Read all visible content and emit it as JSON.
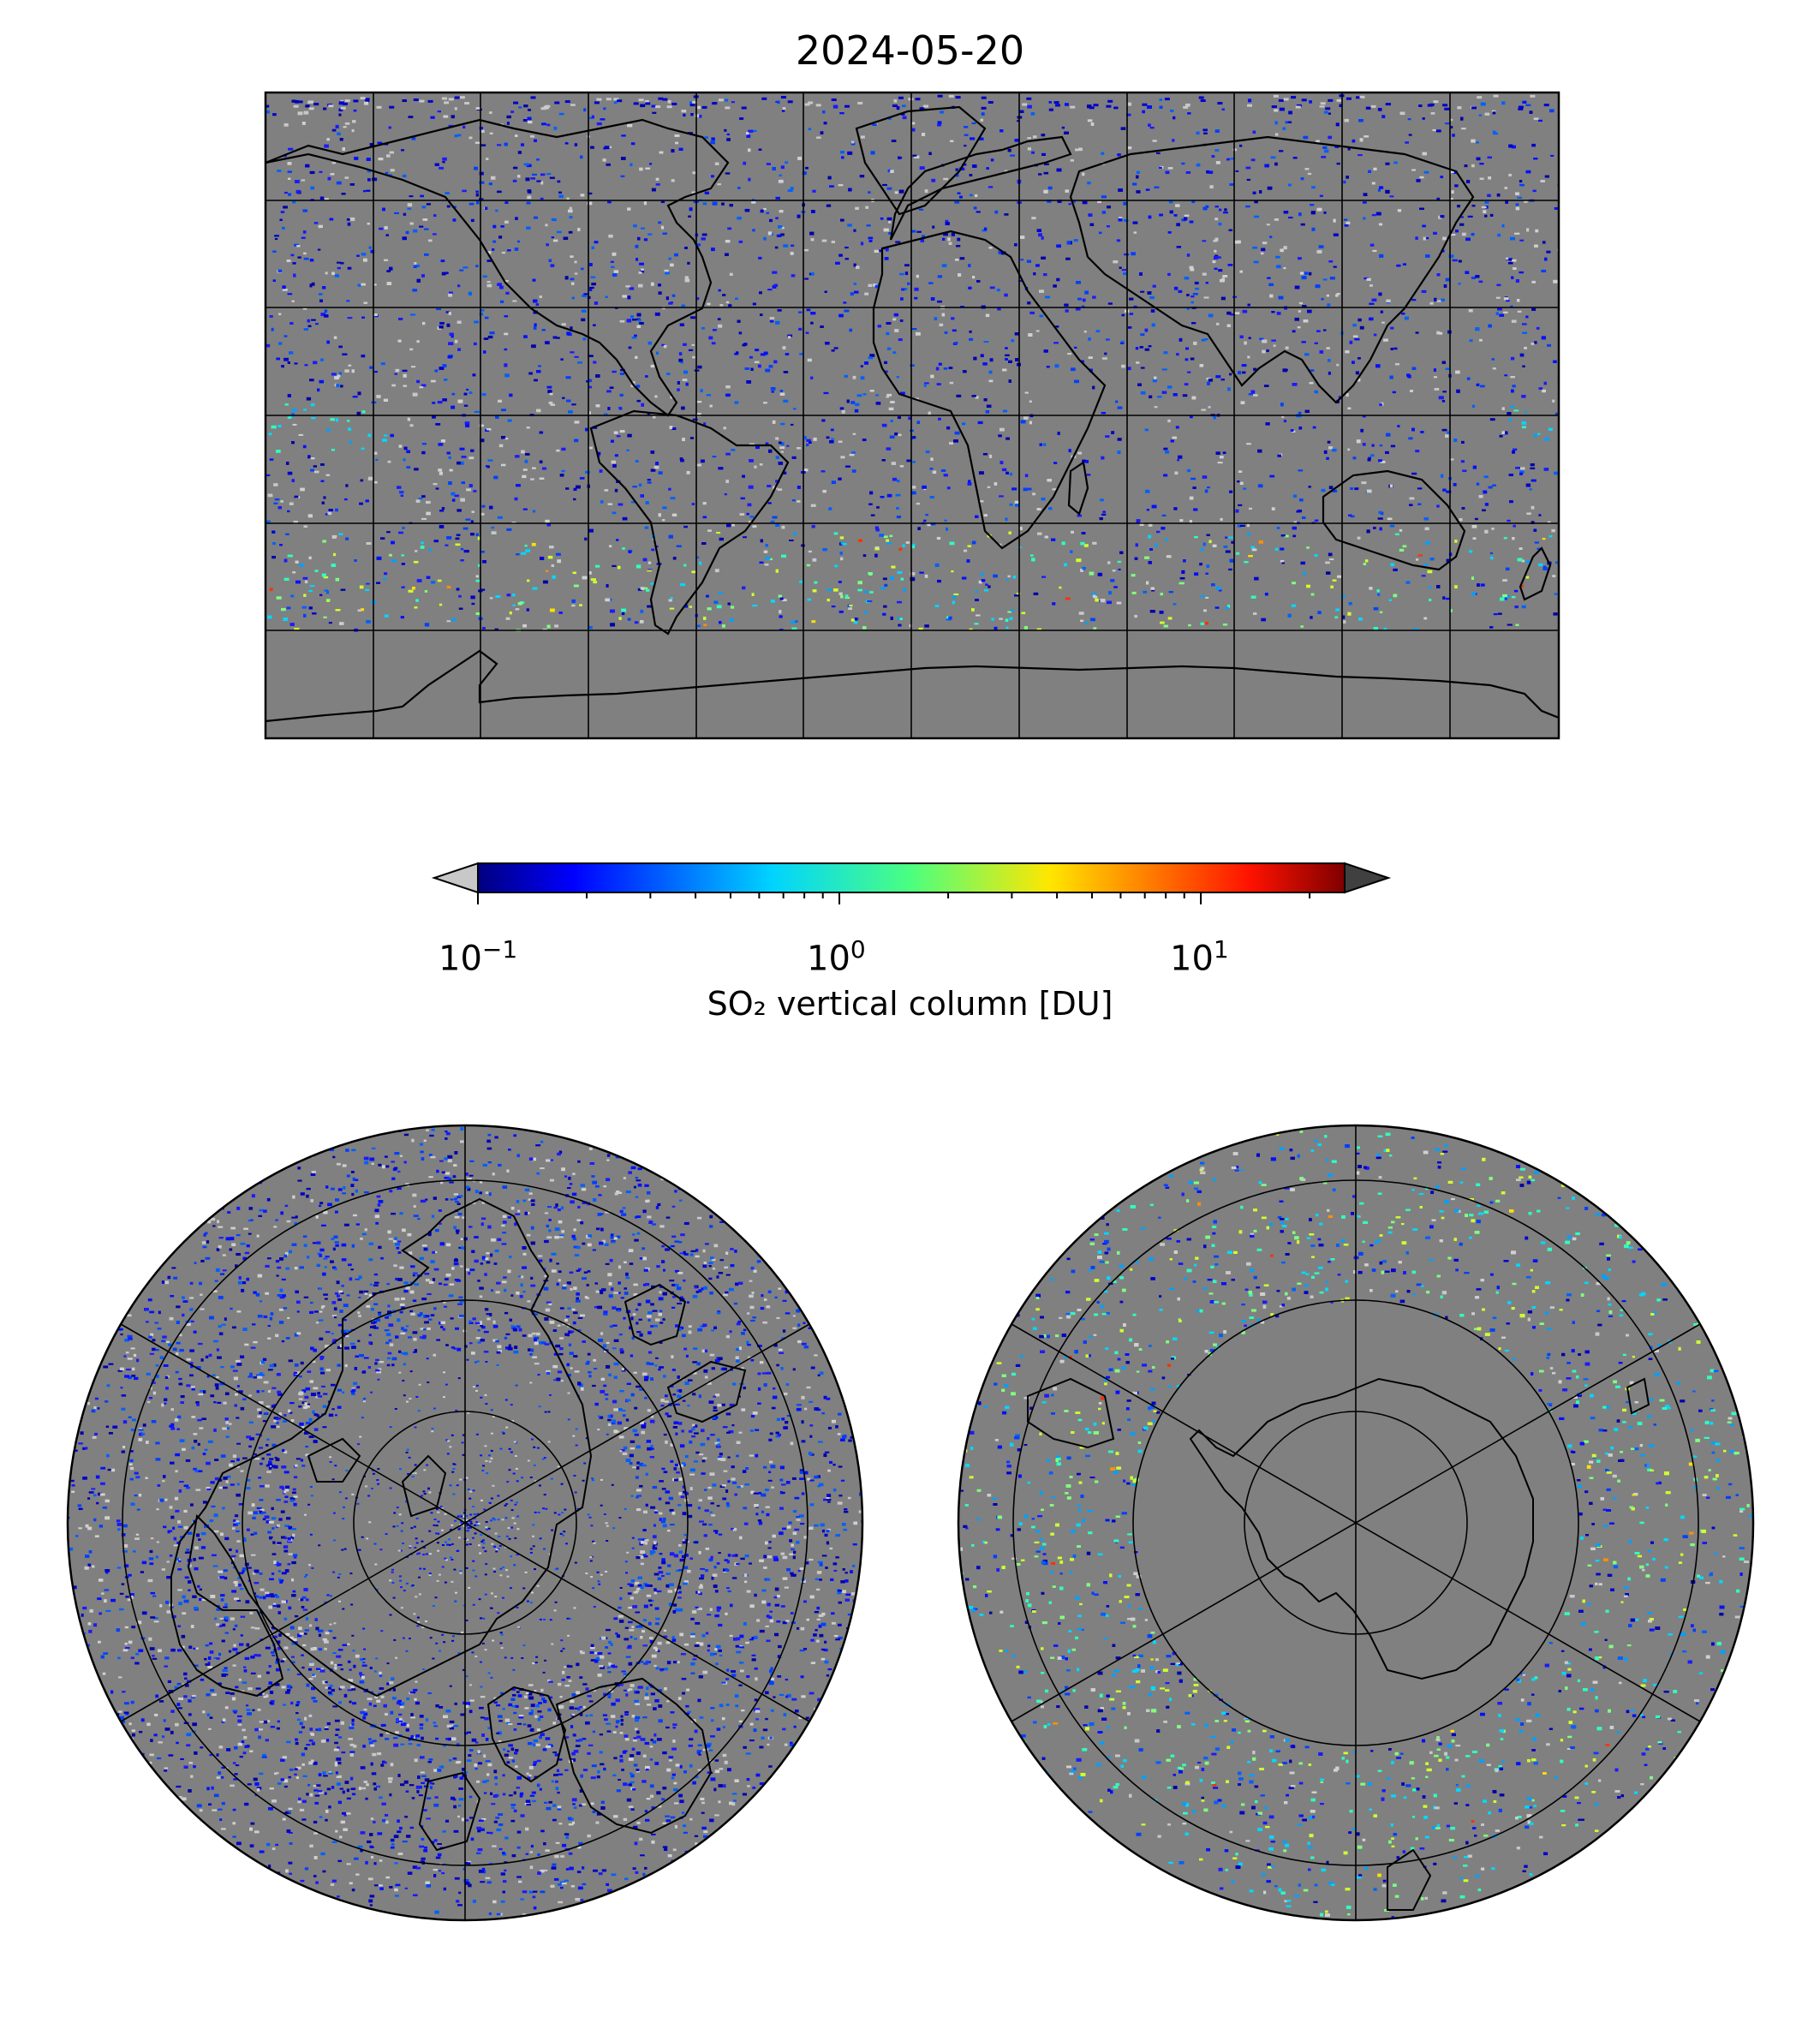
{
  "title": "2024-05-20",
  "colorbar": {
    "label": "SO₂ vertical column [DU]",
    "scale": "log",
    "colormap": "jet",
    "range": [
      0.1,
      25
    ],
    "ticks": [
      {
        "value": 0.1,
        "base": "10",
        "exp": "−1"
      },
      {
        "value": 1,
        "base": "10",
        "exp": "0"
      },
      {
        "value": 10,
        "base": "10",
        "exp": "1"
      }
    ],
    "under_color": "#c8c8c8",
    "over_color": "#404040"
  },
  "maps": [
    {
      "name": "global",
      "projection": "plate-carree",
      "graticule_lon_step_deg": 30,
      "graticule_lat_step_deg": 30
    },
    {
      "name": "north-polar",
      "projection": "north-polar-stereographic"
    },
    {
      "name": "south-polar",
      "projection": "south-polar-stereographic"
    }
  ],
  "background_color": "#808080"
}
